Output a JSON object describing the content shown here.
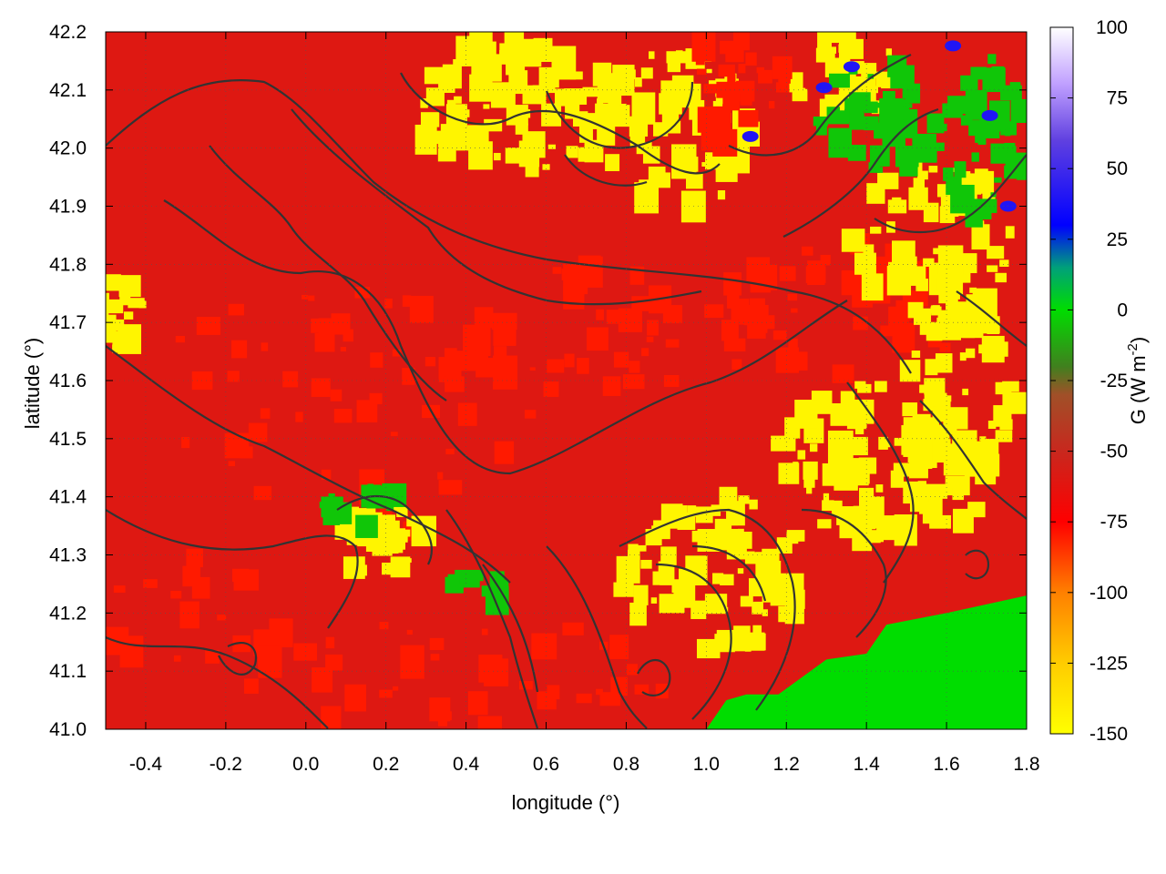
{
  "chart_data": {
    "type": "heatmap",
    "title": "",
    "xlabel": "longitude (°)",
    "ylabel": "latitude (°)",
    "xlim": [
      -0.5,
      1.8
    ],
    "ylim": [
      41.0,
      42.2
    ],
    "x_ticks": [
      "-0.4",
      "-0.2",
      "0.0",
      "0.2",
      "0.4",
      "0.6",
      "0.8",
      "1.0",
      "1.2",
      "1.4",
      "1.6",
      "1.8"
    ],
    "x_tick_values": [
      -0.4,
      -0.2,
      0.0,
      0.2,
      0.4,
      0.6,
      0.8,
      1.0,
      1.2,
      1.4,
      1.6,
      1.8
    ],
    "y_ticks": [
      "41.0",
      "41.1",
      "41.2",
      "41.3",
      "41.4",
      "41.5",
      "41.6",
      "41.7",
      "41.8",
      "41.9",
      "42.0",
      "42.1",
      "42.2"
    ],
    "y_tick_values": [
      41.0,
      41.1,
      41.2,
      41.3,
      41.4,
      41.5,
      41.6,
      41.7,
      41.8,
      41.9,
      42.0,
      42.1,
      42.2
    ],
    "colorbar": {
      "label": "G (W m",
      "label_superscript": "-2",
      "label_close": ")",
      "range": [
        -150,
        100
      ],
      "ticks": [
        "100",
        "75",
        "50",
        "25",
        "0",
        "-25",
        "-50",
        "-75",
        "-100",
        "-125",
        "-150"
      ],
      "tick_values": [
        100,
        75,
        50,
        25,
        0,
        -25,
        -50,
        -75,
        -100,
        -125,
        -150
      ],
      "palette": [
        {
          "value": -150,
          "color": "#ffff00"
        },
        {
          "value": -125,
          "color": "#ffcc00"
        },
        {
          "value": -100,
          "color": "#ff8000"
        },
        {
          "value": -75,
          "color": "#ff0000"
        },
        {
          "value": -50,
          "color": "#c8281e"
        },
        {
          "value": -30,
          "color": "#a05028"
        },
        {
          "value": -20,
          "color": "#40801e"
        },
        {
          "value": 0,
          "color": "#00dd00"
        },
        {
          "value": 15,
          "color": "#00a07a"
        },
        {
          "value": 30,
          "color": "#0000ff"
        },
        {
          "value": 60,
          "color": "#6040e0"
        },
        {
          "value": 80,
          "color": "#c0a0ff"
        },
        {
          "value": 100,
          "color": "#ffffff"
        }
      ]
    },
    "regions": {
      "background_value": -60,
      "bright_red_value": -80,
      "yellow_value": -145,
      "sea_value": 0,
      "green_patch_value": -5,
      "blue_patch_value": 40
    },
    "contour_color": "#333333",
    "grid": true,
    "legend": "none"
  }
}
